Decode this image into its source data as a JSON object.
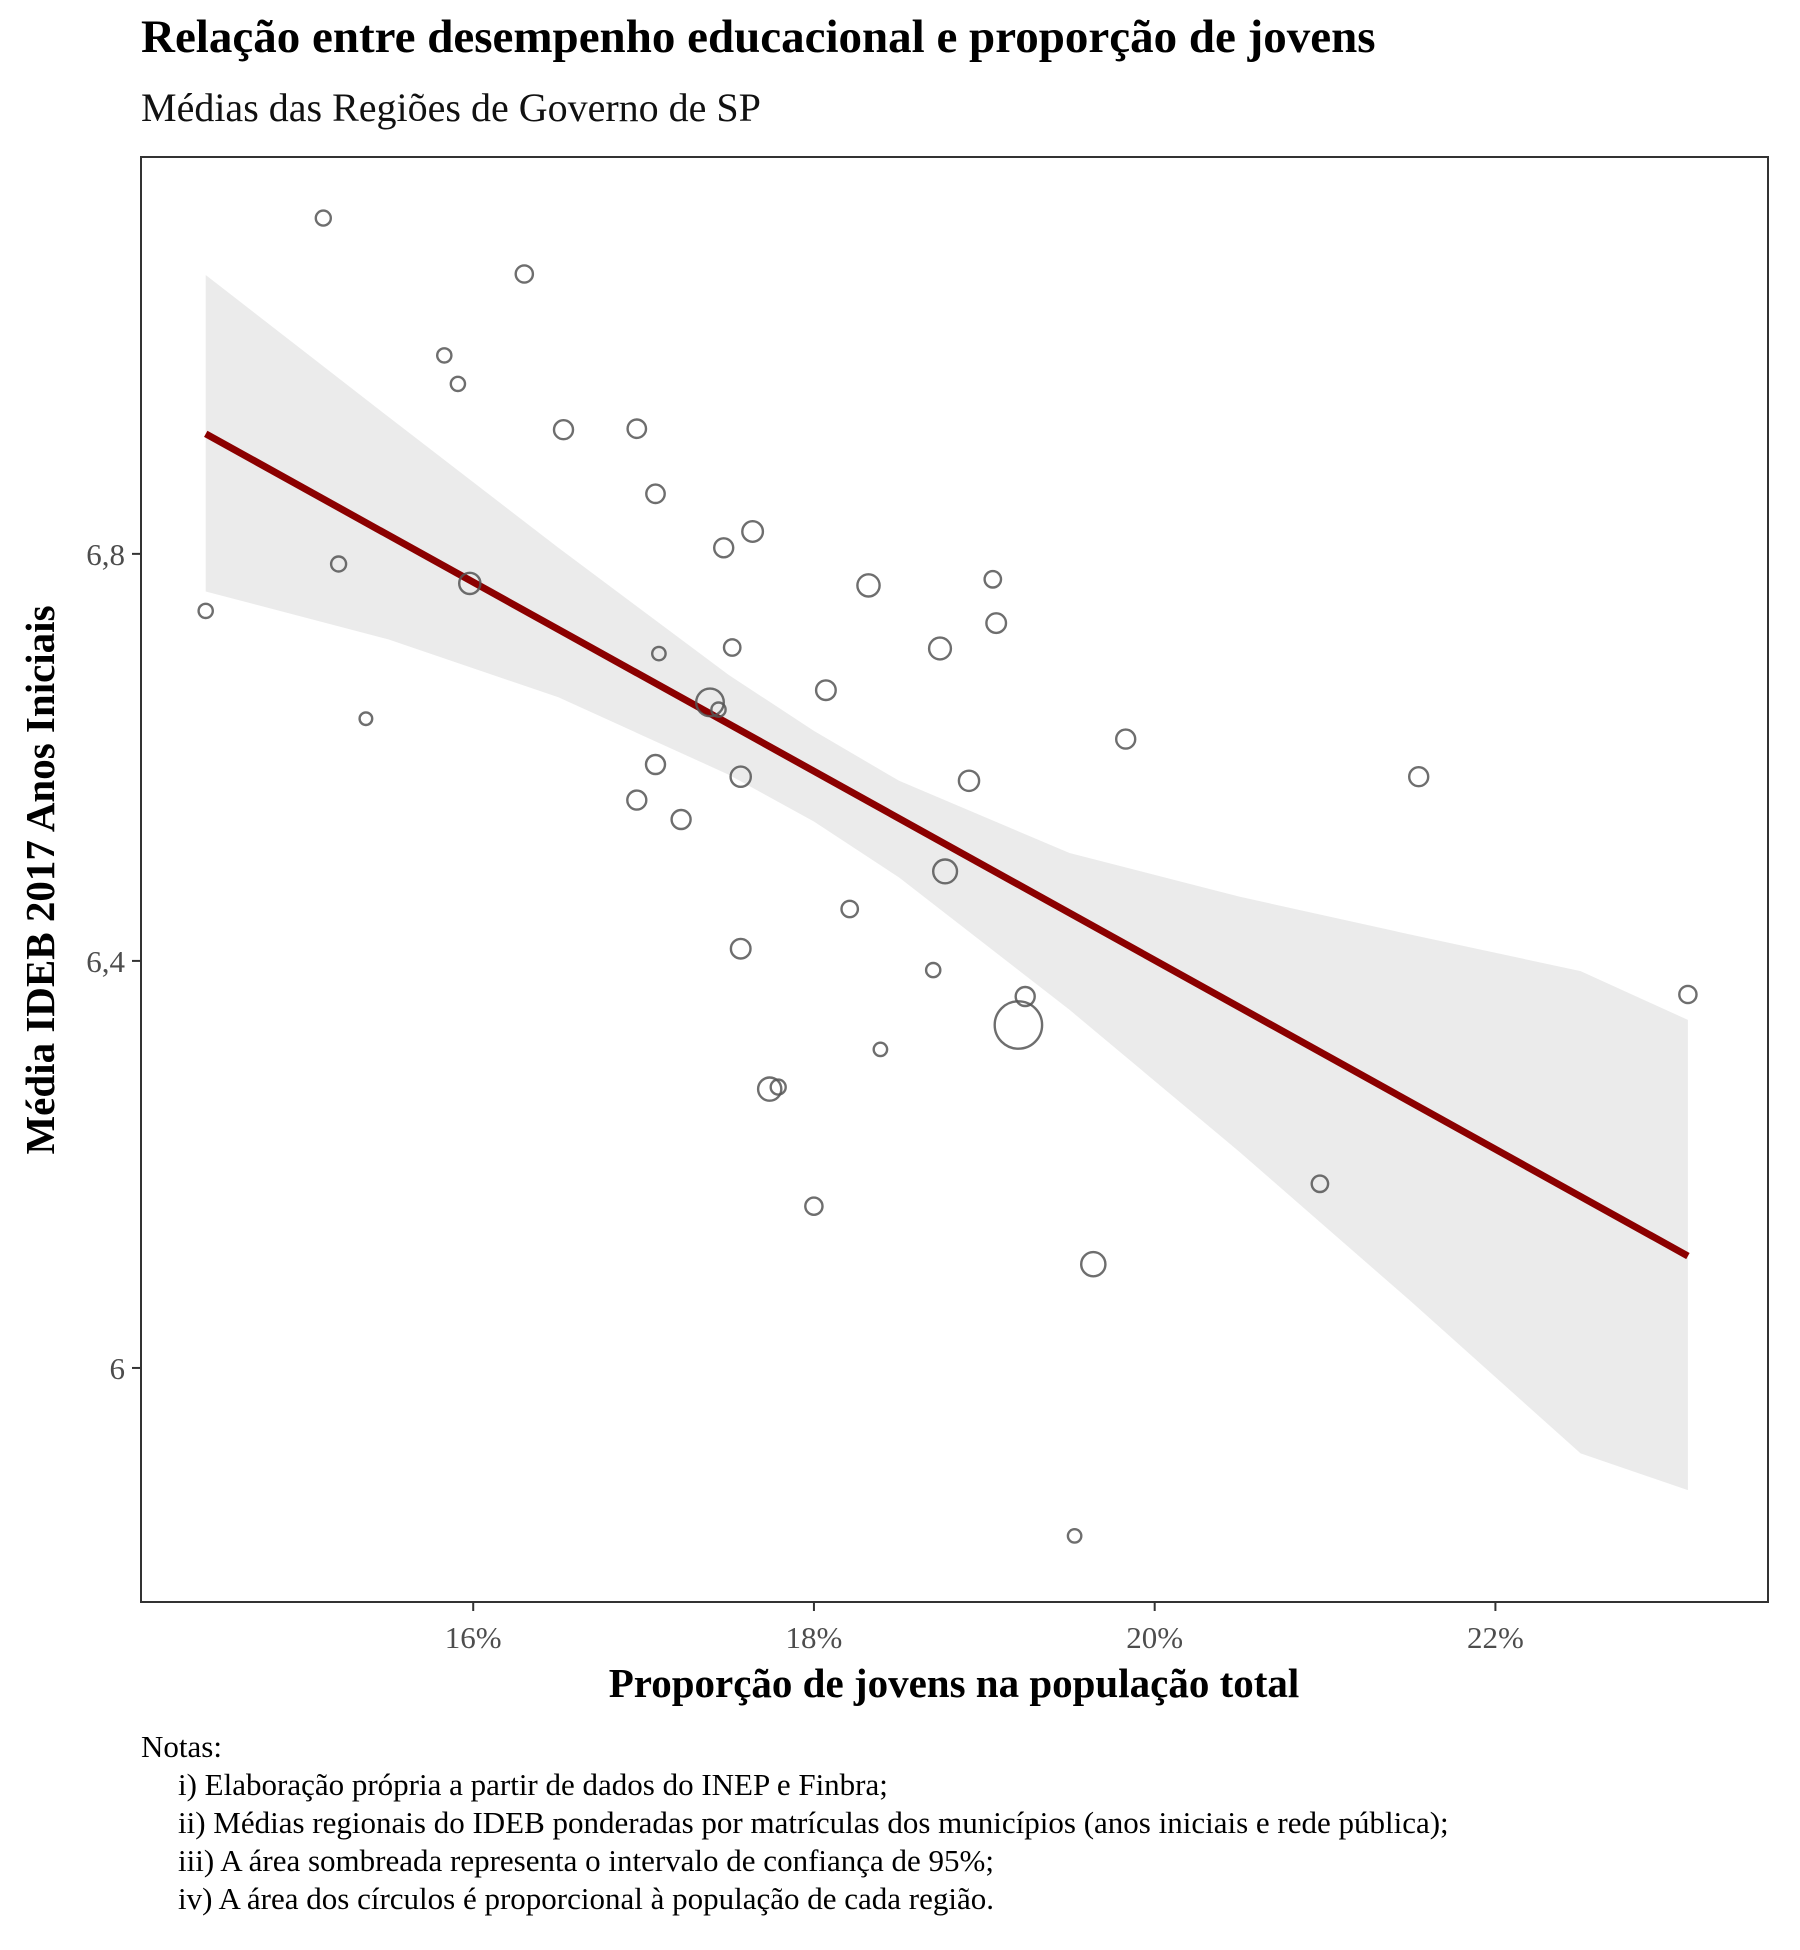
{
  "chart_data": {
    "type": "scatter",
    "title": "Relação entre desempenho educacional e proporção de jovens",
    "subtitle": "Médias das Regiões de Governo de SP",
    "xlabel": "Proporção de jovens na população total",
    "ylabel": "Média IDEB 2017 Anos Iniciais",
    "xlim": [
      14.05,
      23.6
    ],
    "ylim": [
      5.77,
      7.19
    ],
    "x_ticks": [
      16,
      18,
      20,
      22
    ],
    "x_tick_labels": [
      "16%",
      "18%",
      "20%",
      "22%"
    ],
    "y_ticks": [
      6.0,
      6.4,
      6.8
    ],
    "y_tick_labels": [
      "6",
      "6,4",
      "6,8"
    ],
    "grid": false,
    "points": [
      {
        "x": 15.12,
        "y": 7.13,
        "size": 1
      },
      {
        "x": 16.3,
        "y": 7.075,
        "size": 1.3
      },
      {
        "x": 15.83,
        "y": 6.995,
        "size": 0.9
      },
      {
        "x": 15.91,
        "y": 6.967,
        "size": 0.9
      },
      {
        "x": 16.53,
        "y": 6.922,
        "size": 1.6
      },
      {
        "x": 16.96,
        "y": 6.923,
        "size": 1.5
      },
      {
        "x": 17.07,
        "y": 6.859,
        "size": 1.5
      },
      {
        "x": 17.64,
        "y": 6.822,
        "size": 1.9
      },
      {
        "x": 17.47,
        "y": 6.806,
        "size": 1.6
      },
      {
        "x": 18.32,
        "y": 6.769,
        "size": 2.2
      },
      {
        "x": 19.05,
        "y": 6.775,
        "size": 1.2
      },
      {
        "x": 15.21,
        "y": 6.79,
        "size": 1
      },
      {
        "x": 15.98,
        "y": 6.771,
        "size": 2
      },
      {
        "x": 14.43,
        "y": 6.744,
        "size": 0.9
      },
      {
        "x": 19.07,
        "y": 6.732,
        "size": 1.7
      },
      {
        "x": 18.74,
        "y": 6.707,
        "size": 2.1
      },
      {
        "x": 17.52,
        "y": 6.708,
        "size": 1.2
      },
      {
        "x": 17.09,
        "y": 6.702,
        "size": 0.8
      },
      {
        "x": 18.07,
        "y": 6.666,
        "size": 1.7
      },
      {
        "x": 17.39,
        "y": 6.654,
        "size": 3.4
      },
      {
        "x": 17.44,
        "y": 6.647,
        "size": 0.9
      },
      {
        "x": 15.37,
        "y": 6.638,
        "size": 0.7
      },
      {
        "x": 19.83,
        "y": 6.618,
        "size": 1.6
      },
      {
        "x": 17.07,
        "y": 6.593,
        "size": 1.6
      },
      {
        "x": 17.57,
        "y": 6.581,
        "size": 1.8
      },
      {
        "x": 18.91,
        "y": 6.577,
        "size": 1.8
      },
      {
        "x": 21.55,
        "y": 6.581,
        "size": 1.6
      },
      {
        "x": 16.96,
        "y": 6.558,
        "size": 1.6
      },
      {
        "x": 17.22,
        "y": 6.539,
        "size": 1.6
      },
      {
        "x": 18.77,
        "y": 6.488,
        "size": 2.5
      },
      {
        "x": 18.21,
        "y": 6.451,
        "size": 1.2
      },
      {
        "x": 17.57,
        "y": 6.412,
        "size": 1.7
      },
      {
        "x": 18.7,
        "y": 6.391,
        "size": 0.9
      },
      {
        "x": 19.24,
        "y": 6.365,
        "size": 1.6
      },
      {
        "x": 19.2,
        "y": 6.337,
        "size": 10
      },
      {
        "x": 18.39,
        "y": 6.313,
        "size": 0.8
      },
      {
        "x": 17.79,
        "y": 6.276,
        "size": 1
      },
      {
        "x": 17.74,
        "y": 6.274,
        "size": 2.4
      },
      {
        "x": 20.97,
        "y": 6.181,
        "size": 1.2
      },
      {
        "x": 18.0,
        "y": 6.159,
        "size": 1.3
      },
      {
        "x": 19.64,
        "y": 6.102,
        "size": 2.6
      },
      {
        "x": 19.53,
        "y": 5.835,
        "size": 0.8
      },
      {
        "x": 23.13,
        "y": 6.367,
        "size": 1.3
      }
    ],
    "fit_line": {
      "x": [
        14.43,
        23.13
      ],
      "y": [
        6.918,
        6.11
      ],
      "color": "#8b0000"
    },
    "confidence_band": {
      "level": 0.95,
      "color": "#ebebeb",
      "x": [
        14.43,
        15.5,
        16.5,
        17.5,
        18.0,
        18.5,
        19.5,
        20.5,
        21.5,
        22.5,
        23.13
      ],
      "upper": [
        7.074,
        6.935,
        6.806,
        6.681,
        6.626,
        6.577,
        6.506,
        6.463,
        6.426,
        6.39,
        6.342
      ],
      "lower": [
        6.763,
        6.716,
        6.659,
        6.583,
        6.537,
        6.482,
        6.352,
        6.212,
        6.066,
        5.916,
        5.88
      ]
    },
    "point_color": "#555555"
  },
  "notes": {
    "heading": "Notas:",
    "items": [
      "i) Elaboração própria a partir de dados do INEP e Finbra;",
      "ii) Médias regionais do IDEB ponderadas por matrículas dos municípios (anos iniciais e rede pública);",
      "iii) A área sombreada representa o intervalo de confiança de 95%;",
      "iv) A área dos círculos é proporcional à população de cada região."
    ]
  }
}
